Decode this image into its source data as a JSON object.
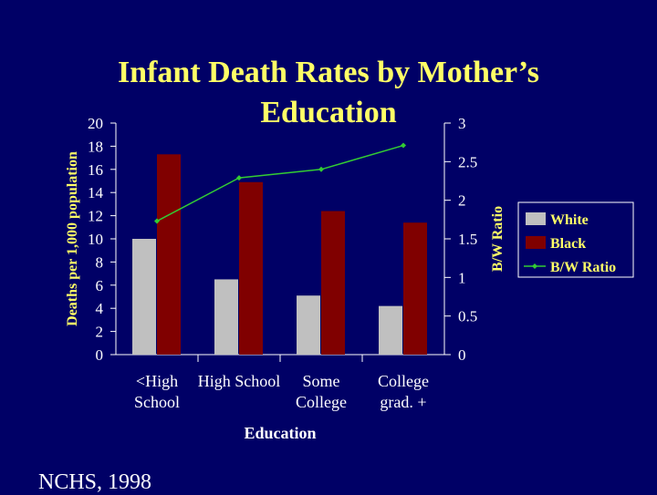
{
  "title": {
    "line1": "Infant Death Rates by Mother’s",
    "line2": "Education"
  },
  "source": "NCHS, 1998",
  "colors": {
    "background": "#000066",
    "title": "#ffff66",
    "text": "#ffffff",
    "white_series": "#c0c0c0",
    "black_series": "#800000",
    "ratio_series": "#33cc33"
  },
  "chart_data": {
    "type": "bar",
    "xlabel": "Education",
    "ylabel": "Deaths per 1,000 population",
    "y2label": "B/W Ratio",
    "ylim": [
      0,
      20
    ],
    "y2lim": [
      0,
      3
    ],
    "yticks": [
      "0",
      "2",
      "4",
      "6",
      "8",
      "10",
      "12",
      "14",
      "16",
      "18",
      "20"
    ],
    "y2ticks": [
      "0",
      "0.5",
      "1",
      "1.5",
      "2",
      "2.5",
      "3"
    ],
    "categories": [
      [
        "<High",
        "School"
      ],
      [
        "High School"
      ],
      [
        "Some",
        "College"
      ],
      [
        "College",
        "grad. +"
      ]
    ],
    "series": [
      {
        "name": "White",
        "values": [
          10.0,
          6.5,
          5.1,
          4.2
        ]
      },
      {
        "name": "Black",
        "values": [
          17.3,
          14.9,
          12.4,
          11.4
        ]
      }
    ],
    "line_series": {
      "name": "B/W Ratio",
      "axis": "right",
      "values": [
        1.73,
        2.29,
        2.4,
        2.71
      ]
    },
    "legend_position": "right",
    "grid": false
  }
}
